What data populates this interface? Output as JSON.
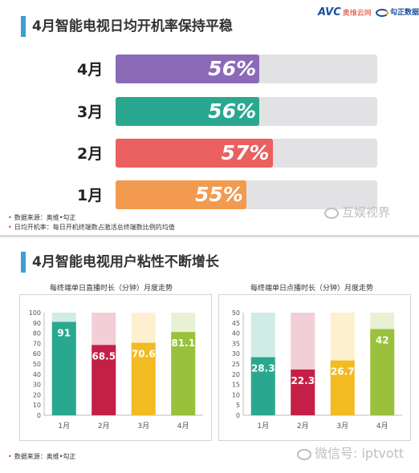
{
  "top": {
    "title": "4月智能电视日均开机率保持平稳",
    "logo_avc_mark": "AVC",
    "logo_avc_cn": "奥维云网",
    "logo_gz_text": "勾正数据",
    "notes": [
      "数据来源：奥维•勾正",
      "日均开机率：每日开机终端数占激活总终端数比例的均值"
    ],
    "watermark": "互娱视界"
  },
  "bottom": {
    "title": "4月智能电视用户粘性不断增长",
    "note": "数据来源：奥维•勾正",
    "watermark": "微信号: iptvott"
  },
  "colors": {
    "purple": "#8b6ab8",
    "teal": "#2aa88f",
    "red": "#ea5f5f",
    "orange": "#f29a50",
    "crimson": "#c41f47",
    "yellow": "#f2bb22",
    "green": "#99c13c"
  },
  "chart_data": [
    {
      "type": "bar",
      "orientation": "horizontal",
      "title": "4月智能电视日均开机率保持平稳",
      "categories": [
        "4月",
        "3月",
        "2月",
        "1月"
      ],
      "values": [
        56,
        56,
        57,
        55
      ],
      "labels": [
        "56%",
        "56%",
        "57%",
        "55%"
      ],
      "xlim": [
        45,
        65
      ],
      "colors": [
        "#8b6ab8",
        "#2aa88f",
        "#ea5f5f",
        "#f29a50"
      ]
    },
    {
      "type": "bar",
      "title": "每终端单日直播时长（分钟）月度走势",
      "categories": [
        "1月",
        "2月",
        "3月",
        "4月"
      ],
      "values": [
        91,
        68.5,
        70.6,
        81.1
      ],
      "labels": [
        "91",
        "68.5",
        "70.6",
        "81.1"
      ],
      "ylim": [
        0,
        100
      ],
      "yticks": [
        0,
        10,
        20,
        30,
        40,
        50,
        60,
        70,
        80,
        90,
        100
      ],
      "colors": [
        "#2aa88f",
        "#c41f47",
        "#f2bb22",
        "#99c13c"
      ]
    },
    {
      "type": "bar",
      "title": "每终端单日点播时长（分钟）月度走势",
      "categories": [
        "1月",
        "2月",
        "3月",
        "4月"
      ],
      "values": [
        28.3,
        22.3,
        26.7,
        42
      ],
      "labels": [
        "28.3",
        "22.3",
        "26.7",
        "42"
      ],
      "ylim": [
        0,
        50
      ],
      "yticks": [
        0,
        5,
        10,
        15,
        20,
        25,
        30,
        35,
        40,
        45,
        50
      ],
      "colors": [
        "#2aa88f",
        "#c41f47",
        "#f2bb22",
        "#99c13c"
      ]
    }
  ]
}
